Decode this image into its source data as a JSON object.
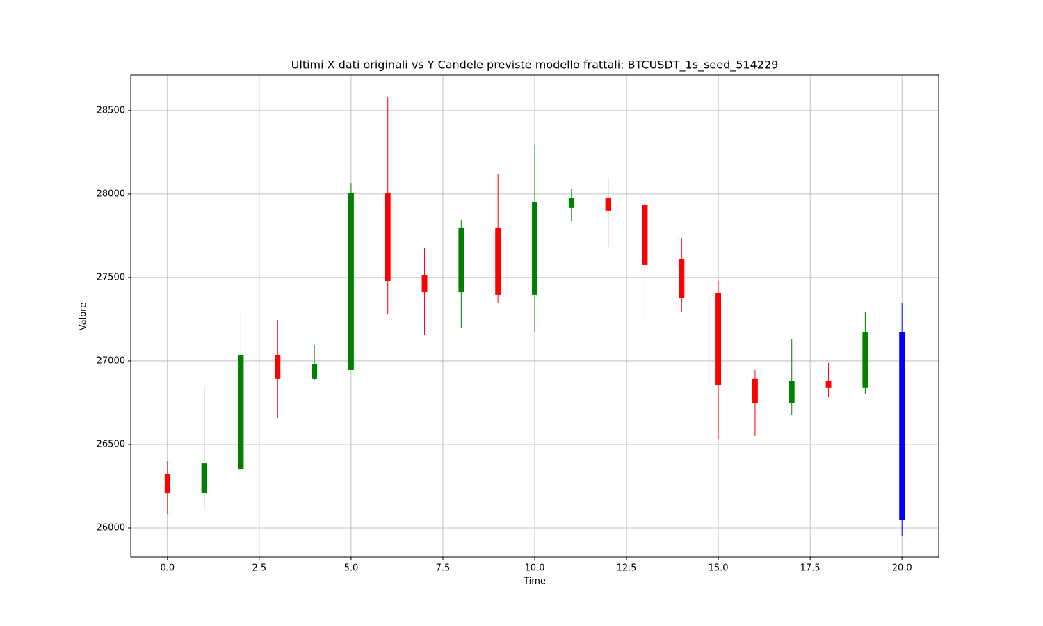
{
  "chart_data": {
    "type": "candlestick",
    "title": "Ultimi X dati originali vs Y Candele previste modello frattali: BTCUSDT_1s_seed_514229",
    "x_label": "Time",
    "y_label": "Valore",
    "x": [
      0,
      1,
      2,
      3,
      4,
      5,
      6,
      7,
      8,
      9,
      10,
      11,
      12,
      13,
      14,
      15,
      16,
      17,
      18,
      19,
      20
    ],
    "open": [
      26321,
      26208,
      26354,
      27037,
      26892,
      26946,
      28008,
      27512,
      27412,
      27796,
      27396,
      27917,
      27975,
      27933,
      27608,
      27408,
      26892,
      26746,
      26879,
      26838,
      27171
    ],
    "high": [
      26400,
      26850,
      27308,
      27246,
      27096,
      28067,
      28579,
      27675,
      27842,
      28121,
      28296,
      28029,
      28096,
      27987,
      27737,
      27479,
      26946,
      27129,
      26988,
      27292,
      27346
    ],
    "low": [
      26083,
      26108,
      26337,
      26658,
      26883,
      26946,
      27279,
      27154,
      27196,
      27346,
      27171,
      27837,
      27683,
      27254,
      27296,
      26533,
      26550,
      26679,
      26783,
      26804,
      25950
    ],
    "close": [
      26208,
      26387,
      27037,
      26892,
      26979,
      28008,
      27479,
      27412,
      27796,
      27396,
      27950,
      27975,
      27900,
      27575,
      27375,
      26858,
      26746,
      26879,
      26838,
      27171,
      26046
    ],
    "colors": [
      "red",
      "green",
      "green",
      "red",
      "green",
      "green",
      "red",
      "red",
      "green",
      "red",
      "green",
      "green",
      "red",
      "red",
      "red",
      "red",
      "red",
      "green",
      "red",
      "green",
      "blue"
    ],
    "xlim": [
      -1,
      21
    ],
    "ylim": [
      25825,
      28712
    ],
    "xticks": [
      {
        "value": 0,
        "label": "0.0"
      },
      {
        "value": 2.5,
        "label": "2.5"
      },
      {
        "value": 5,
        "label": "5.0"
      },
      {
        "value": 7.5,
        "label": "7.5"
      },
      {
        "value": 10,
        "label": "10.0"
      },
      {
        "value": 12.5,
        "label": "12.5"
      },
      {
        "value": 15,
        "label": "15.0"
      },
      {
        "value": 17.5,
        "label": "17.5"
      },
      {
        "value": 20,
        "label": "20.0"
      }
    ],
    "yticks": [
      26000,
      26500,
      27000,
      27500,
      28000,
      28500
    ],
    "grid": true
  }
}
